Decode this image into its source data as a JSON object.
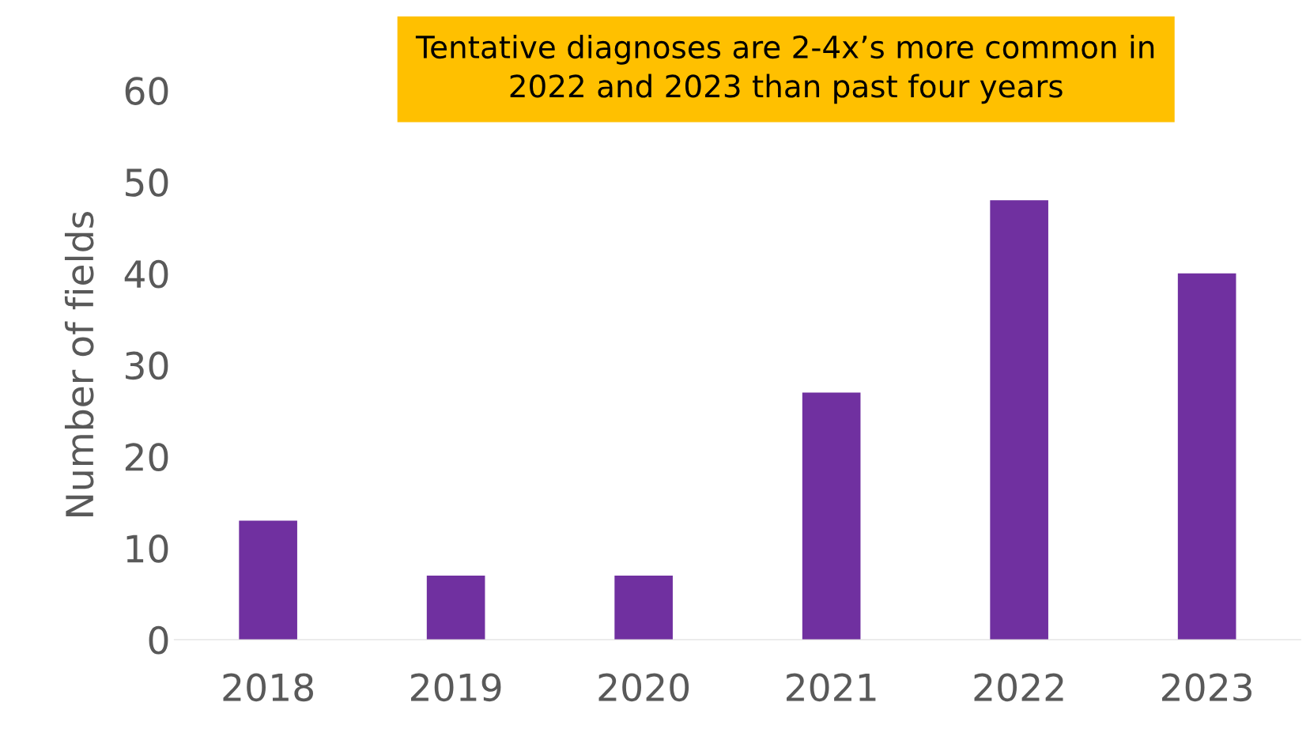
{
  "chart_data": {
    "type": "bar",
    "categories": [
      "2018",
      "2019",
      "2020",
      "2021",
      "2022",
      "2023"
    ],
    "values": [
      13,
      7,
      7,
      27,
      48,
      40
    ],
    "color": "#7030a0",
    "ylabel": "Number of fields",
    "ylim": [
      0,
      60
    ],
    "yticks": [
      0,
      10,
      20,
      30,
      40,
      50,
      60
    ],
    "grid": false,
    "legend": false,
    "annotations": [
      "Tentative diagnoses are 2-4x’s more common in\n2022 and 2023 than past four years"
    ]
  }
}
